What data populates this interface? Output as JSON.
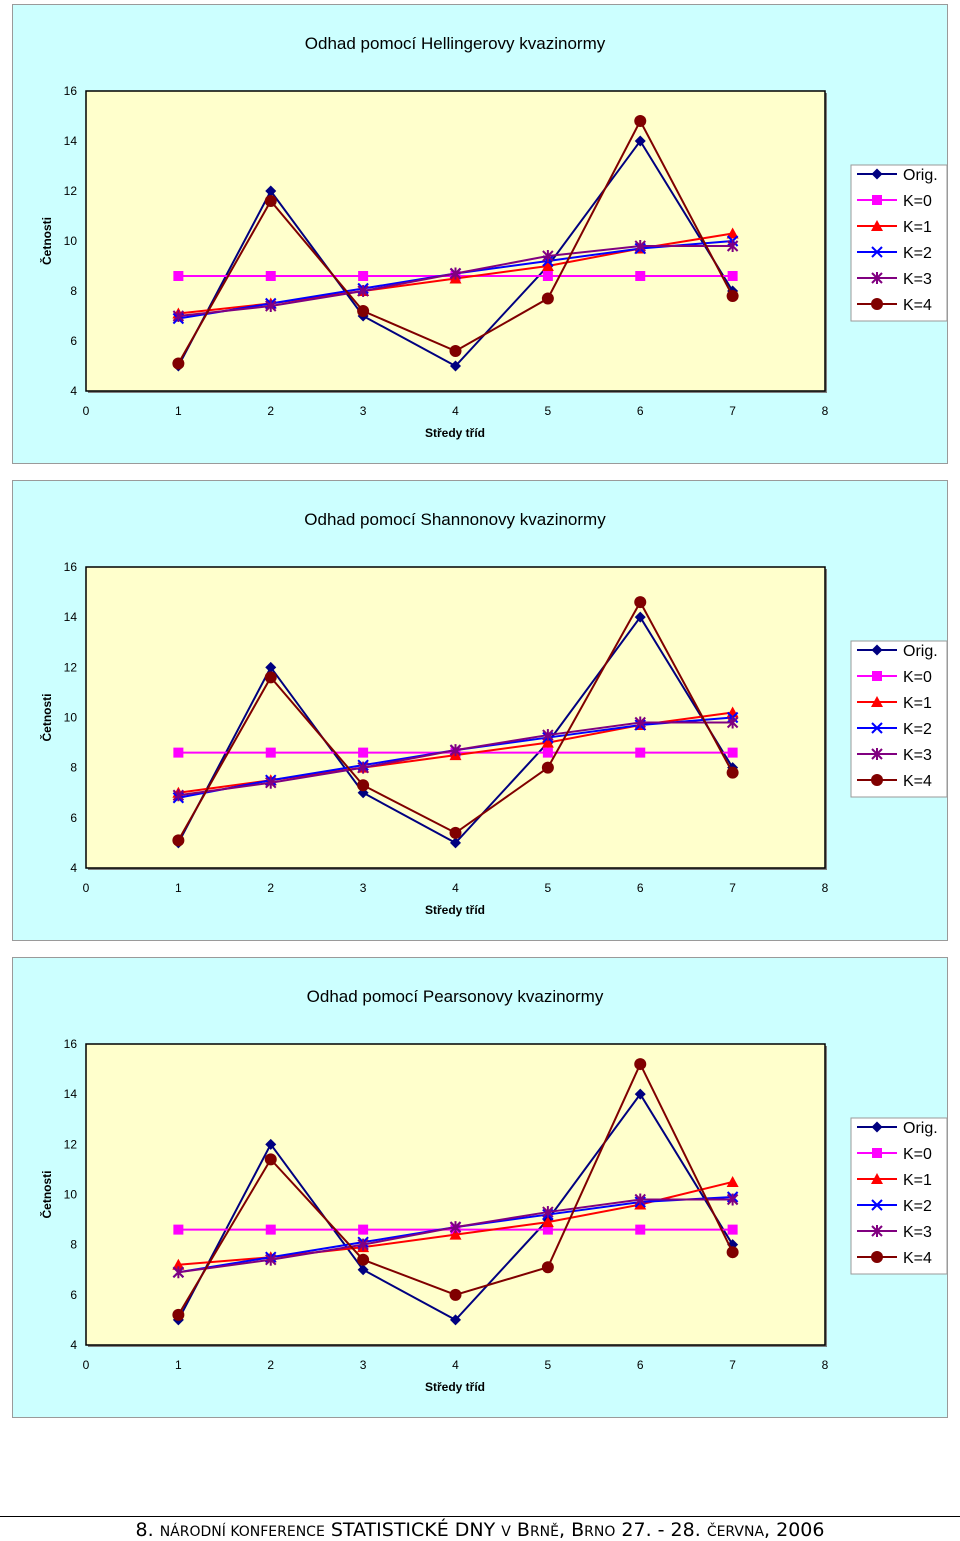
{
  "colors": {
    "panel_bg": "#ccffff",
    "plot_bg": "#ffffcc",
    "Orig.": "#000080",
    "K=0": "#ff00ff",
    "K=1": "#ff0000",
    "K=2": "#0000ff",
    "K=3": "#800080",
    "K=4": "#800000"
  },
  "chart_data": [
    {
      "type": "line",
      "title": "Odhad pomocí Hellingerovy kvazinormy",
      "xlabel": "Středy tříd",
      "ylabel": "Četnosti",
      "xlim": [
        0,
        8
      ],
      "ylim": [
        4,
        16
      ],
      "x_ticks": [
        0,
        1,
        2,
        3,
        4,
        5,
        6,
        7,
        8
      ],
      "y_ticks": [
        4,
        6,
        8,
        10,
        12,
        14,
        16
      ],
      "grid": false,
      "legend": "right",
      "x": [
        1,
        2,
        3,
        4,
        5,
        6,
        7
      ],
      "series": [
        {
          "name": "Orig.",
          "marker": "diamond",
          "values": [
            5,
            12,
            7,
            5,
            9,
            14,
            8
          ]
        },
        {
          "name": "K=0",
          "marker": "square",
          "values": [
            8.6,
            8.6,
            8.6,
            8.6,
            8.6,
            8.6,
            8.6
          ]
        },
        {
          "name": "K=1",
          "marker": "triangle",
          "values": [
            7.1,
            7.5,
            8.0,
            8.5,
            9.0,
            9.7,
            10.3
          ]
        },
        {
          "name": "K=2",
          "marker": "x",
          "values": [
            6.9,
            7.5,
            8.1,
            8.7,
            9.2,
            9.7,
            10.0
          ]
        },
        {
          "name": "K=3",
          "marker": "star",
          "values": [
            7.0,
            7.4,
            8.0,
            8.7,
            9.4,
            9.8,
            9.8
          ]
        },
        {
          "name": "K=4",
          "marker": "circle",
          "values": [
            5.1,
            11.6,
            7.2,
            5.6,
            7.7,
            14.8,
            7.8
          ]
        }
      ]
    },
    {
      "type": "line",
      "title": "Odhad pomocí Shannonovy kvazinormy",
      "xlabel": "Středy tříd",
      "ylabel": "Četnosti",
      "xlim": [
        0,
        8
      ],
      "ylim": [
        4,
        16
      ],
      "x_ticks": [
        0,
        1,
        2,
        3,
        4,
        5,
        6,
        7,
        8
      ],
      "y_ticks": [
        4,
        6,
        8,
        10,
        12,
        14,
        16
      ],
      "grid": false,
      "legend": "right",
      "x": [
        1,
        2,
        3,
        4,
        5,
        6,
        7
      ],
      "series": [
        {
          "name": "Orig.",
          "marker": "diamond",
          "values": [
            5,
            12,
            7,
            5,
            9,
            14,
            8
          ]
        },
        {
          "name": "K=0",
          "marker": "square",
          "values": [
            8.6,
            8.6,
            8.6,
            8.6,
            8.6,
            8.6,
            8.6
          ]
        },
        {
          "name": "K=1",
          "marker": "triangle",
          "values": [
            7.0,
            7.5,
            8.0,
            8.5,
            9.0,
            9.7,
            10.2
          ]
        },
        {
          "name": "K=2",
          "marker": "x",
          "values": [
            6.8,
            7.5,
            8.1,
            8.7,
            9.2,
            9.7,
            10.0
          ]
        },
        {
          "name": "K=3",
          "marker": "star",
          "values": [
            6.9,
            7.4,
            8.0,
            8.7,
            9.3,
            9.8,
            9.8
          ]
        },
        {
          "name": "K=4",
          "marker": "circle",
          "values": [
            5.1,
            11.6,
            7.3,
            5.4,
            8.0,
            14.6,
            7.8
          ]
        }
      ]
    },
    {
      "type": "line",
      "title": "Odhad pomocí Pearsonovy kvazinormy",
      "xlabel": "Středy tříd",
      "ylabel": "Četnosti",
      "xlim": [
        0,
        8
      ],
      "ylim": [
        4,
        16
      ],
      "x_ticks": [
        0,
        1,
        2,
        3,
        4,
        5,
        6,
        7,
        8
      ],
      "y_ticks": [
        4,
        6,
        8,
        10,
        12,
        14,
        16
      ],
      "grid": false,
      "legend": "right",
      "x": [
        1,
        2,
        3,
        4,
        5,
        6,
        7
      ],
      "series": [
        {
          "name": "Orig.",
          "marker": "diamond",
          "values": [
            5,
            12,
            7,
            5,
            9,
            14,
            8
          ]
        },
        {
          "name": "K=0",
          "marker": "square",
          "values": [
            8.6,
            8.6,
            8.6,
            8.6,
            8.6,
            8.6,
            8.6
          ]
        },
        {
          "name": "K=1",
          "marker": "triangle",
          "values": [
            7.2,
            7.5,
            7.9,
            8.4,
            8.9,
            9.6,
            10.5
          ]
        },
        {
          "name": "K=2",
          "marker": "x",
          "values": [
            6.9,
            7.5,
            8.1,
            8.7,
            9.2,
            9.7,
            9.9
          ]
        },
        {
          "name": "K=3",
          "marker": "star",
          "values": [
            6.9,
            7.4,
            8.0,
            8.7,
            9.3,
            9.8,
            9.8
          ]
        },
        {
          "name": "K=4",
          "marker": "circle",
          "values": [
            5.2,
            11.4,
            7.4,
            6.0,
            7.1,
            15.2,
            7.7
          ]
        }
      ]
    }
  ],
  "footer": {
    "p1": "8. ",
    "p2": "NÁRODNÍ KONFERENCE",
    "p3": " STATISTICKÉ DNY ",
    "p4": "V",
    "p5": " B",
    "p6": "RNĚ",
    "p7": ", B",
    "p8": "RNO",
    "p9": " 27. - 28. ",
    "p10": "ČERVNA",
    "p11": ", 2006"
  }
}
